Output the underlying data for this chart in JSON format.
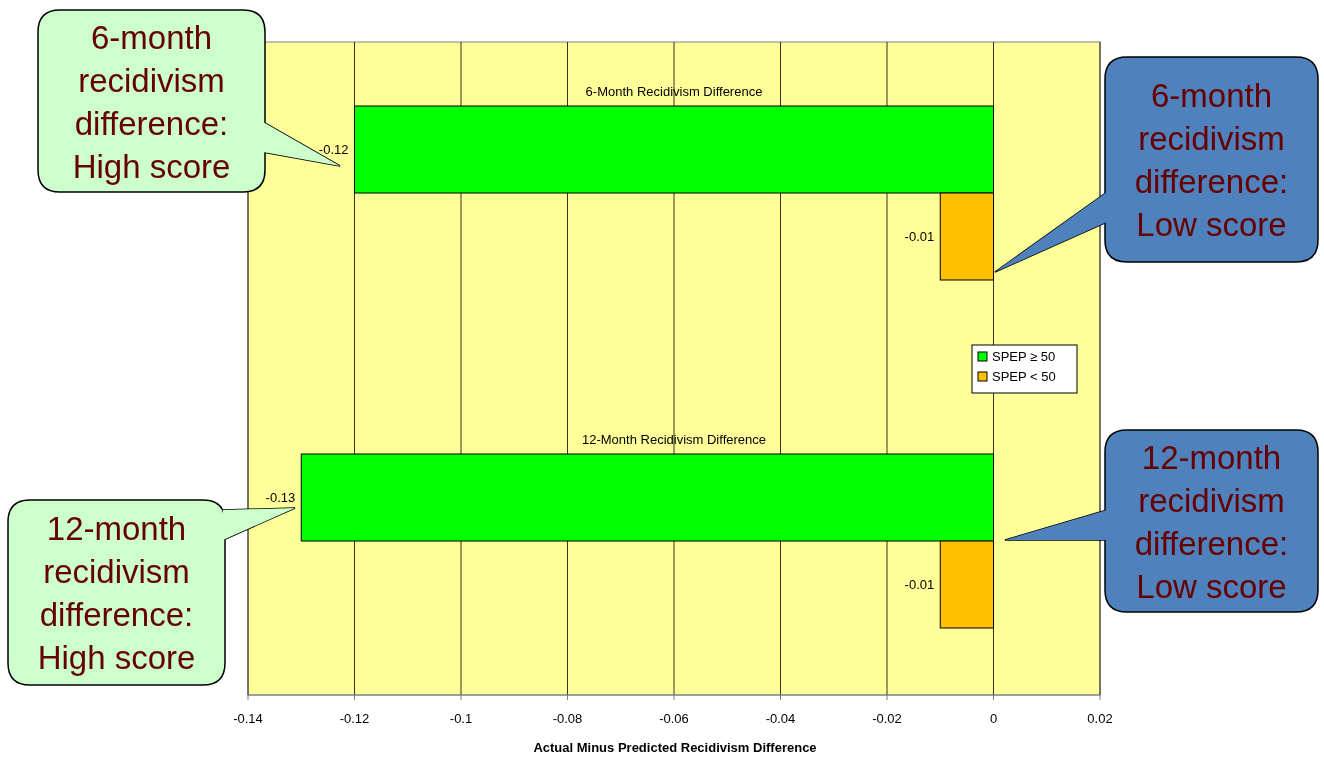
{
  "chart_data": {
    "type": "bar",
    "orientation": "horizontal",
    "xlabel": "Actual Minus Predicted Recidivism Difference",
    "categories": [
      "6-Month Recidivism Difference",
      "12-Month Recidivism Difference"
    ],
    "series": [
      {
        "name": "SPEP ≥ 50",
        "color": "#00ff00",
        "values": [
          -0.12,
          -0.13
        ]
      },
      {
        "name": "SPEP < 50",
        "color": "#ffc000",
        "values": [
          -0.01,
          -0.01
        ]
      }
    ],
    "xlim": [
      -0.14,
      0.02
    ],
    "xticks": [
      -0.14,
      -0.12,
      -0.1,
      -0.08,
      -0.06,
      -0.04,
      -0.02,
      0,
      0.02
    ],
    "grid": "x",
    "legend": "right",
    "data_labels": true,
    "annotations": [
      "6-month recidivism difference: High score",
      "6-month recidivism difference: Low score",
      "12-month recidivism difference: High score",
      "12-month recidivism difference: Low score"
    ]
  }
}
